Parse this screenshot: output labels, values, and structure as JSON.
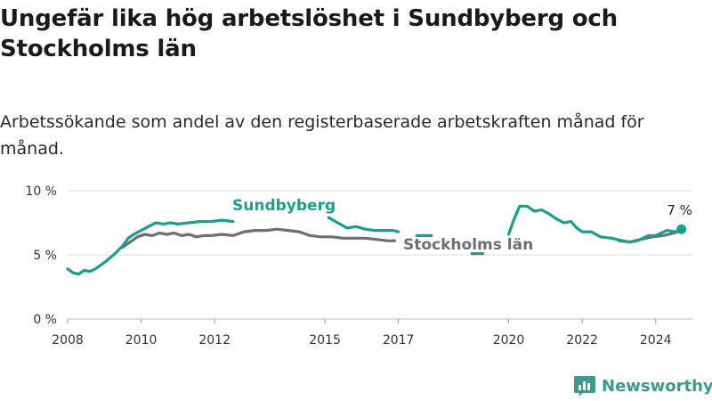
{
  "header": {
    "title": "Ungefär lika hög arbetslöshet i Sundbyberg och Stockholms län",
    "subtitle": "Arbetssökande som andel av den registerbaserade arbetskraften månad för månad."
  },
  "brand": {
    "name": "Newsworthy",
    "color": "#3a9b8d"
  },
  "chart_data": {
    "type": "line",
    "title": "Ungefär lika hög arbetslöshet i Sundbyberg och Stockholms län",
    "subtitle": "Arbetssökande som andel av den registerbaserade arbetskraften månad för månad.",
    "xlabel": "",
    "ylabel": "",
    "xlim": [
      2008,
      2025
    ],
    "ylim": [
      0,
      10
    ],
    "yticks": [
      0,
      5,
      10
    ],
    "ytick_labels": [
      "0 %",
      "5 %",
      "10 %"
    ],
    "xticks": [
      2008,
      2010,
      2012,
      2015,
      2017,
      2020,
      2022,
      2024
    ],
    "xtick_labels": [
      "2008",
      "2010",
      "2012",
      "2015",
      "2017",
      "2020",
      "2022",
      "2024"
    ],
    "grid": true,
    "series": [
      {
        "name": "Sundbyberg",
        "color": "#1b9e8f",
        "x": [
          2008.0,
          2008.15,
          2008.3,
          2008.45,
          2008.6,
          2008.75,
          2009.0,
          2009.25,
          2009.5,
          2009.65,
          2009.8,
          2010.0,
          2010.2,
          2010.4,
          2010.6,
          2010.8,
          2011.0,
          2011.3,
          2011.6,
          2011.9,
          2012.2,
          2012.5,
          null,
          2015.1,
          2015.35,
          2015.6,
          2015.85,
          2016.1,
          2016.35,
          2016.6,
          2016.85,
          2017.0,
          null,
          2017.5,
          2017.9,
          null,
          2019.0,
          2019.3,
          null,
          2020.0,
          2020.15,
          2020.3,
          2020.5,
          2020.7,
          2020.9,
          2021.1,
          2021.3,
          2021.5,
          2021.7,
          2021.85,
          2022.0,
          2022.25,
          2022.5,
          2022.8,
          2023.1,
          2023.3,
          2023.5,
          2023.8,
          2024.0,
          2024.3,
          2024.55,
          2024.7
        ],
        "values": [
          3.9,
          3.6,
          3.5,
          3.8,
          3.7,
          3.9,
          4.4,
          5.0,
          5.7,
          6.3,
          6.6,
          6.9,
          7.2,
          7.5,
          7.4,
          7.5,
          7.4,
          7.5,
          7.6,
          7.6,
          7.7,
          7.6,
          null,
          7.9,
          7.5,
          7.1,
          7.2,
          7.0,
          6.9,
          6.9,
          6.9,
          6.8,
          null,
          6.5,
          6.5,
          null,
          5.1,
          5.1,
          null,
          6.6,
          7.8,
          8.8,
          8.8,
          8.4,
          8.5,
          8.2,
          7.8,
          7.5,
          7.6,
          7.1,
          6.8,
          6.8,
          6.4,
          6.3,
          6.1,
          6.0,
          6.1,
          6.5,
          6.5,
          6.9,
          6.8,
          7.0
        ],
        "end_label": "7 %"
      },
      {
        "name": "Stockholms län",
        "color": "#6e6e73",
        "x": [
          2009.5,
          2009.7,
          2009.9,
          2010.1,
          2010.3,
          2010.5,
          2010.7,
          2010.9,
          2011.1,
          2011.3,
          2011.5,
          2011.7,
          2011.9,
          2012.2,
          2012.5,
          2012.8,
          2013.1,
          2013.4,
          2013.7,
          2014.0,
          2014.3,
          2014.6,
          2014.9,
          2015.2,
          2015.5,
          2015.8,
          2016.1,
          2016.4,
          2016.7,
          2016.9,
          null,
          2023.0,
          2023.3,
          2023.6,
          2023.9,
          2024.2,
          2024.5,
          2024.7
        ],
        "values": [
          5.6,
          6.0,
          6.4,
          6.6,
          6.5,
          6.7,
          6.6,
          6.7,
          6.5,
          6.6,
          6.4,
          6.5,
          6.5,
          6.6,
          6.5,
          6.8,
          6.9,
          6.9,
          7.0,
          6.9,
          6.8,
          6.5,
          6.4,
          6.4,
          6.3,
          6.3,
          6.3,
          6.2,
          6.1,
          6.1,
          null,
          6.1,
          6.0,
          6.2,
          6.4,
          6.5,
          6.7,
          6.9
        ]
      }
    ]
  }
}
